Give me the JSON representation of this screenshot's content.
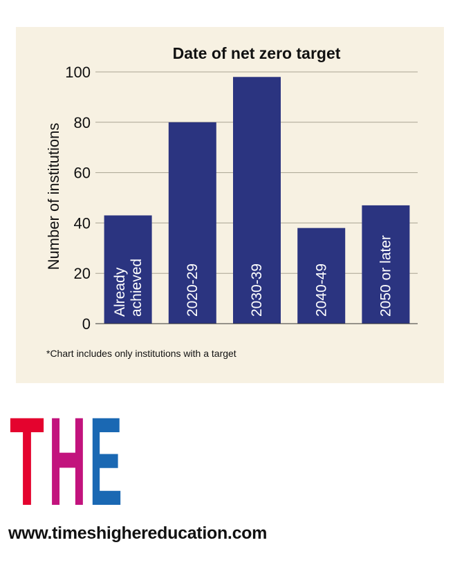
{
  "chart_data": {
    "type": "bar",
    "title": "Date of net zero target",
    "ylabel": "Number of institutions",
    "xlabel": "",
    "categories": [
      [
        "Already",
        "achieved"
      ],
      [
        "2020-29"
      ],
      [
        "2030-39"
      ],
      [
        "2040-49"
      ],
      [
        "2050 or later"
      ]
    ],
    "values": [
      43,
      80,
      98,
      38,
      47
    ],
    "ylim": [
      0,
      100
    ],
    "yticks": [
      "0",
      "20",
      "40",
      "60",
      "80",
      "100"
    ],
    "grid": true,
    "bar_color": "#2b3480"
  },
  "footnote": "*Chart includes only institutions with a target",
  "logo": {
    "letters": [
      "T",
      "H",
      "E"
    ],
    "colors": [
      "#e4032e",
      "#c2137d",
      "#1a68b3"
    ]
  },
  "website": "www.timeshighereducation.com",
  "colors": {
    "panel_bg": "#f7f1e2"
  }
}
